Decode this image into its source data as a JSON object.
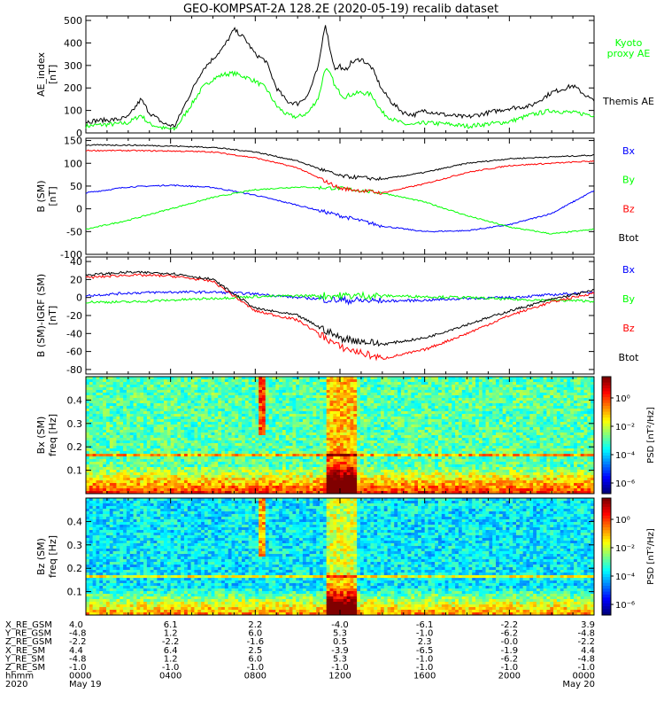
{
  "title": "GEO-KOMPSAT-2A 128.2E (2020-05-19) recalib dataset",
  "chart_data": [
    {
      "id": "ae",
      "type": "line",
      "ylabel_lines": [
        "AE_index",
        "[nT]"
      ],
      "ylim": [
        0,
        520
      ],
      "yticks": [
        0,
        100,
        200,
        300,
        400,
        500
      ],
      "series": [
        {
          "name": "Kyoto proxy AE",
          "legend_lines": [
            "Kyoto",
            "proxy AE"
          ],
          "color": "#00ff00",
          "x": [
            0,
            0.5,
            1.5,
            2.0,
            2.6,
            3.0,
            3.7,
            4.2,
            4.8,
            5.5,
            6.0,
            6.5,
            7.0,
            7.5,
            8.0,
            8.5,
            9.0,
            9.5,
            10.0,
            10.5,
            11.0,
            11.3,
            11.6,
            11.8,
            12.0,
            12.2,
            12.5,
            13.0,
            13.5,
            14.0,
            14.5,
            15.0,
            15.5,
            16.0,
            17.0,
            18.0,
            19.0,
            20.0,
            21.0,
            22.0,
            23.0,
            24.0
          ],
          "values": [
            30,
            35,
            40,
            45,
            80,
            40,
            20,
            15,
            100,
            200,
            240,
            260,
            265,
            250,
            230,
            200,
            120,
            80,
            70,
            90,
            160,
            290,
            250,
            200,
            180,
            160,
            170,
            180,
            170,
            90,
            60,
            40,
            35,
            45,
            40,
            30,
            40,
            50,
            80,
            100,
            90,
            80
          ]
        },
        {
          "name": "Themis AE",
          "legend_lines": [
            "Themis AE"
          ],
          "color": "#000000",
          "x": [
            0,
            0.5,
            1.5,
            2.0,
            2.6,
            3.0,
            3.7,
            4.2,
            4.8,
            5.5,
            6.0,
            6.5,
            7.0,
            7.5,
            8.0,
            8.5,
            9.0,
            9.5,
            10.0,
            10.5,
            11.0,
            11.3,
            11.6,
            11.8,
            12.0,
            12.2,
            12.5,
            13.0,
            13.5,
            14.0,
            14.5,
            15.0,
            15.5,
            16.0,
            17.0,
            18.0,
            19.0,
            20.0,
            21.0,
            22.0,
            23.0,
            24.0
          ],
          "values": [
            50,
            55,
            60,
            70,
            150,
            90,
            40,
            30,
            150,
            280,
            330,
            380,
            460,
            420,
            350,
            320,
            200,
            140,
            130,
            170,
            300,
            490,
            340,
            280,
            300,
            270,
            310,
            330,
            290,
            190,
            130,
            90,
            80,
            100,
            80,
            70,
            90,
            110,
            120,
            180,
            210,
            140
          ]
        }
      ]
    },
    {
      "id": "b",
      "type": "line",
      "ylabel_lines": [
        "B (SM)",
        "[nT]"
      ],
      "ylim": [
        -100,
        155
      ],
      "yticks": [
        -100,
        -50,
        0,
        50,
        100,
        150
      ],
      "series": [
        {
          "name": "Bx",
          "color": "#0000ff",
          "x": [
            0,
            2,
            4,
            6,
            8,
            10,
            12,
            14,
            16,
            18,
            20,
            22,
            24
          ],
          "values": [
            35,
            48,
            52,
            47,
            30,
            8,
            -15,
            -38,
            -50,
            -48,
            -35,
            -10,
            40
          ]
        },
        {
          "name": "By",
          "color": "#00ff00",
          "x": [
            0,
            2,
            4,
            6,
            8,
            10,
            12,
            14,
            16,
            18,
            20,
            22,
            24
          ],
          "values": [
            -45,
            -25,
            0,
            25,
            42,
            48,
            45,
            35,
            15,
            -15,
            -40,
            -55,
            -45
          ]
        },
        {
          "name": "Bz",
          "color": "#ff0000",
          "x": [
            0,
            2,
            4,
            6,
            8,
            10,
            12,
            14,
            16,
            18,
            20,
            22,
            24
          ],
          "values": [
            128,
            128,
            127,
            125,
            112,
            90,
            45,
            35,
            55,
            80,
            95,
            100,
            105
          ]
        },
        {
          "name": "Btot",
          "color": "#000000",
          "x": [
            0,
            2,
            4,
            6,
            8,
            10,
            12,
            14,
            16,
            18,
            20,
            22,
            24
          ],
          "values": [
            140,
            140,
            138,
            135,
            125,
            105,
            72,
            65,
            80,
            100,
            110,
            114,
            118
          ]
        }
      ]
    },
    {
      "id": "dbb",
      "type": "line",
      "ylabel_lines": [
        "B (SM)-IGRF (SM)",
        "[nT]"
      ],
      "ylim": [
        -85,
        45
      ],
      "yticks": [
        -80,
        -60,
        -40,
        -20,
        0,
        20,
        40
      ],
      "series": [
        {
          "name": "Bx",
          "color": "#0000ff",
          "x": [
            0,
            2,
            4,
            6,
            8,
            10,
            12,
            14,
            16,
            18,
            20,
            22,
            24
          ],
          "values": [
            2,
            5,
            6,
            6,
            4,
            0,
            -3,
            -4,
            -3,
            -1,
            0,
            3,
            6
          ]
        },
        {
          "name": "By",
          "color": "#00ff00",
          "x": [
            0,
            2,
            4,
            6,
            8,
            10,
            12,
            14,
            16,
            18,
            20,
            22,
            24
          ],
          "values": [
            -5,
            -5,
            -3,
            -1,
            1,
            2,
            2,
            2,
            1,
            0,
            -2,
            -3,
            -4
          ]
        },
        {
          "name": "Bz",
          "color": "#ff0000",
          "x": [
            0,
            2,
            4,
            6,
            8,
            10,
            12,
            14,
            16,
            18,
            20,
            22,
            24
          ],
          "values": [
            22,
            25,
            24,
            18,
            -15,
            -25,
            -55,
            -68,
            -58,
            -40,
            -20,
            -5,
            5
          ]
        },
        {
          "name": "Btot",
          "color": "#000000",
          "x": [
            0,
            2,
            4,
            6,
            8,
            10,
            12,
            14,
            16,
            18,
            20,
            22,
            24
          ],
          "values": [
            25,
            28,
            27,
            20,
            -12,
            -20,
            -45,
            -52,
            -45,
            -30,
            -15,
            -2,
            8
          ]
        }
      ]
    },
    {
      "id": "psd_bx",
      "type": "heatmap",
      "ylabel_lines": [
        "Bx (SM)",
        "freq [Hz]"
      ],
      "ylim": [
        0,
        0.5
      ],
      "yticks": [
        0.1,
        0.2,
        0.3,
        0.4
      ],
      "colorbar_label": "PSD [nT²/Hz]",
      "colorbar_ticks": [
        "10⁰",
        "10⁻²",
        "10⁻⁴",
        "10⁻⁶"
      ]
    },
    {
      "id": "psd_bz",
      "type": "heatmap",
      "ylabel_lines": [
        "Bz (SM)",
        "freq [Hz]"
      ],
      "ylim": [
        0,
        0.5
      ],
      "yticks": [
        0.1,
        0.2,
        0.3,
        0.4
      ],
      "colorbar_label": "PSD [nT²/Hz]",
      "colorbar_ticks": [
        "10⁰",
        "10⁻²",
        "10⁻⁴",
        "10⁻⁶"
      ]
    }
  ],
  "ephemeris": {
    "labels": [
      "X_RE_GSM",
      "Y_RE_GSM",
      "Z_RE_GSM",
      "X_RE_SM",
      "Y_RE_SM",
      "Z_RE_SM",
      "hhmm",
      "2020"
    ],
    "columns": [
      [
        "4.0",
        "-4.8",
        "-2.2",
        "4.4",
        "-4.8",
        "-1.0",
        "0000",
        ""
      ],
      [
        "6.1",
        "1.2",
        "-2.2",
        "6.4",
        "1.2",
        "-1.0",
        "0400",
        ""
      ],
      [
        "2.2",
        "6.0",
        "-1.6",
        "2.5",
        "6.0",
        "-1.0",
        "0800",
        ""
      ],
      [
        "-4.0",
        "5.3",
        "0.5",
        "-3.9",
        "5.3",
        "-1.0",
        "1200",
        ""
      ],
      [
        "-6.1",
        "-1.0",
        "2.3",
        "-6.5",
        "-1.0",
        "-1.0",
        "1600",
        ""
      ],
      [
        "-2.2",
        "-6.2",
        "-0.0",
        "-1.9",
        "-6.2",
        "-1.0",
        "2000",
        ""
      ],
      [
        "3.9",
        "-4.8",
        "-2.2",
        "4.4",
        "-4.8",
        "-1.0",
        "0000",
        ""
      ]
    ],
    "date_start": "May 19",
    "date_end": "May 20"
  }
}
